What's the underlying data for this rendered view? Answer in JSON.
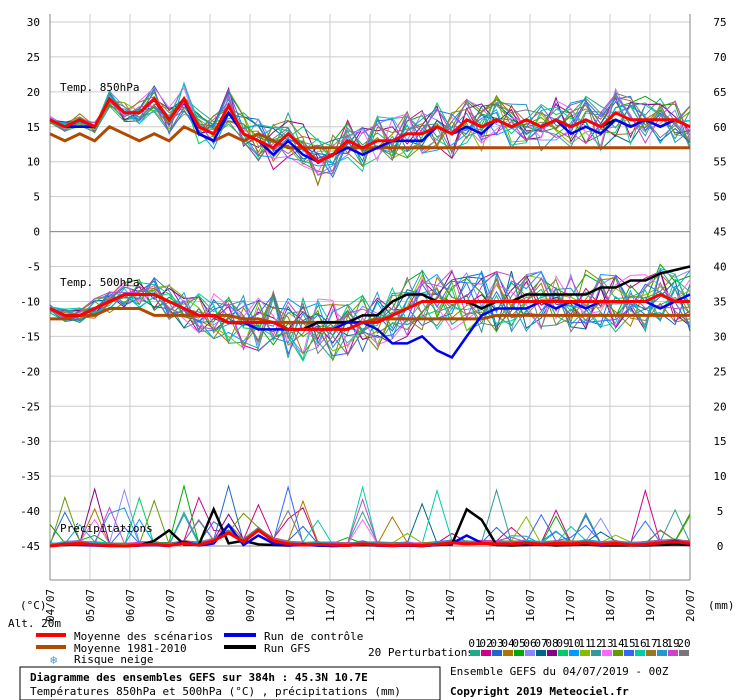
{
  "chart_data": {
    "type": "line",
    "title": "Diagramme des ensembles GEFS sur 384h : 45.3N 10.7E",
    "subtitle": "Températures 850hPa et 500hPa (°C) , précipitations (mm)",
    "run_info": "Ensemble GEFS du 04/07/2019 - 00Z",
    "copyright": "Copyright 2019 Meteociel.fr",
    "left_unit": "(°C)",
    "right_unit": "(mm)",
    "alt_label": "Alt. 20m",
    "left_axis": {
      "ticks": [
        30,
        25,
        20,
        15,
        10,
        5,
        0,
        -5,
        -10,
        -15,
        -20,
        -25,
        -30,
        -35,
        -40,
        -45
      ],
      "range": [
        -45,
        30
      ]
    },
    "right_axis": {
      "ticks": [
        75,
        70,
        65,
        60,
        55,
        50,
        45,
        40,
        35,
        30,
        25,
        20,
        15,
        10,
        5,
        0
      ]
    },
    "x_dates": [
      "04/07",
      "05/07",
      "06/07",
      "07/07",
      "08/07",
      "09/07",
      "10/07",
      "11/07",
      "12/07",
      "13/07",
      "14/07",
      "15/07",
      "16/07",
      "17/07",
      "18/07",
      "19/07",
      "20/07"
    ],
    "panels": [
      {
        "label": "Temp. 850hPa",
        "right_range": [
          45,
          75
        ]
      },
      {
        "label": "Temp. 500hPa",
        "right_range": [
          20,
          45
        ]
      },
      {
        "label": "Précipitations",
        "right_range": [
          0,
          20
        ]
      }
    ],
    "series": [
      {
        "name": "Moyenne des scénarios",
        "color": "#ff0000",
        "t850": [
          16,
          15,
          16,
          15,
          19,
          17,
          17,
          19,
          16,
          19,
          15,
          14,
          18,
          14,
          13,
          12,
          14,
          12,
          10,
          11,
          13,
          12,
          13,
          13,
          14,
          14,
          15,
          14,
          16,
          15,
          16,
          15,
          16,
          15,
          16,
          15,
          16,
          15,
          17,
          16,
          16,
          16,
          16,
          15
        ],
        "t500": [
          -11,
          -12,
          -12,
          -11,
          -10,
          -9,
          -9,
          -9,
          -10,
          -11,
          -12,
          -12,
          -13,
          -13,
          -13,
          -13,
          -14,
          -14,
          -14,
          -14,
          -14,
          -13,
          -13,
          -12,
          -11,
          -10,
          -10,
          -10,
          -10,
          -10,
          -10,
          -10,
          -10,
          -10,
          -10,
          -10,
          -10,
          -10,
          -10,
          -10,
          -10,
          -9,
          -10,
          -10
        ],
        "precip": [
          0,
          0.3,
          0.5,
          0.2,
          0.1,
          0,
          0.2,
          0.3,
          0.1,
          0.5,
          0.2,
          1,
          2.5,
          0.8,
          3,
          1,
          0.4,
          0.2,
          0.3,
          0.2,
          0.1,
          0.4,
          0.2,
          0.1,
          0.2,
          0.1,
          0.3,
          0.6,
          0.4,
          0.5,
          0.4,
          0.4,
          0.6,
          0.3,
          0.5,
          0.4,
          0.6,
          0.3,
          0.5,
          0.2,
          0.3,
          0.6,
          0.8,
          0.5
        ]
      },
      {
        "name": "Moyenne 1981-2010",
        "color": "#b04a00",
        "t850": [
          14,
          13,
          14,
          13,
          15,
          14,
          13,
          14,
          13,
          15,
          14,
          13,
          14,
          13,
          14,
          13,
          12,
          12,
          12,
          12,
          12,
          12,
          12,
          12,
          12,
          12,
          12,
          12,
          12,
          12,
          12,
          12,
          12,
          12,
          12,
          12,
          12,
          12,
          12,
          12,
          12,
          12,
          12,
          12
        ],
        "t500": [
          -12.5,
          -12.5,
          -12,
          -12,
          -11,
          -11,
          -11,
          -12,
          -12,
          -12,
          -12,
          -12,
          -12,
          -12.5,
          -12.5,
          -13,
          -13,
          -13,
          -13,
          -13,
          -13,
          -13,
          -12.5,
          -12.5,
          -12.5,
          -12.5,
          -12.5,
          -12.5,
          -12.5,
          -12.5,
          -12,
          -12,
          -12,
          -12,
          -12,
          -12,
          -12,
          -12,
          -12,
          -12,
          -12,
          -12,
          -12,
          -12
        ],
        "precip": []
      },
      {
        "name": "Run de contrôle",
        "color": "#0000ee",
        "t850": [
          16,
          15,
          15,
          15,
          19,
          17,
          17,
          19,
          16,
          19,
          14,
          13,
          17,
          14,
          13,
          11,
          13,
          11,
          10,
          11,
          12,
          11,
          12,
          13,
          13,
          13,
          15,
          14,
          15,
          14,
          16,
          15,
          16,
          15,
          16,
          14,
          15,
          14,
          16,
          15,
          16,
          15,
          16,
          15
        ],
        "t500": [
          -11,
          -12,
          -12,
          -11,
          -10,
          -9,
          -9,
          -9,
          -10,
          -11,
          -12,
          -12,
          -13,
          -13,
          -14,
          -14,
          -14,
          -14,
          -14,
          -14,
          -13,
          -13,
          -14,
          -16,
          -16,
          -15,
          -17,
          -18,
          -15,
          -12,
          -11,
          -11,
          -11,
          -10,
          -11,
          -10,
          -11,
          -10,
          -10,
          -10,
          -10,
          -11,
          -10,
          -9
        ],
        "precip": [
          0,
          0.4,
          0.2,
          0.1,
          0,
          0,
          0.1,
          0.2,
          0,
          0.8,
          0.1,
          0.5,
          4,
          0.2,
          2,
          0.5,
          0.1,
          0.2,
          0.1,
          0,
          0.1,
          0.3,
          0.1,
          0,
          0.1,
          0,
          0.2,
          0.5,
          2,
          0.6,
          0.2,
          0.3,
          0.5,
          0.2,
          0.4,
          0.3,
          0.6,
          0.1,
          0.4,
          0.2,
          0.2,
          0.5,
          1,
          0.3
        ]
      },
      {
        "name": "Run GFS",
        "color": "#000000",
        "t850": [
          16,
          15,
          16,
          15,
          19,
          17,
          17,
          19,
          16,
          19,
          15,
          14,
          17,
          14,
          13,
          12,
          14,
          12,
          10,
          11,
          13,
          12,
          13,
          13,
          14,
          14,
          15,
          14,
          16,
          15,
          16,
          15,
          16,
          15,
          16,
          15,
          16,
          15,
          16,
          15,
          16,
          15,
          16,
          15
        ],
        "t500": [
          -11,
          -12,
          -12,
          -11,
          -10,
          -9,
          -9,
          -9,
          -10,
          -11,
          -12,
          -12,
          -13,
          -13,
          -13,
          -13,
          -14,
          -14,
          -13,
          -13,
          -13,
          -12,
          -12,
          -10,
          -9,
          -9,
          -10,
          -10,
          -10,
          -11,
          -10,
          -10,
          -9,
          -9,
          -9,
          -9,
          -9,
          -8,
          -8,
          -7,
          -7,
          -6,
          -5.5,
          -5
        ],
        "precip": [
          0,
          0.2,
          0.3,
          0.2,
          0.1,
          0,
          0.1,
          1,
          3,
          0.3,
          0.2,
          7,
          0.5,
          1,
          0.3,
          0.2,
          0.1,
          0.3,
          0.1,
          0,
          0.1,
          0.2,
          0.1,
          0.1,
          0.1,
          0,
          0.2,
          0.3,
          7,
          5,
          0.2,
          0.1,
          0.2,
          0.3,
          0.1,
          0.2,
          0.3,
          0.1,
          0.1,
          0.1,
          0.1,
          0.2,
          0.3,
          0.2
        ]
      }
    ],
    "perturbations": {
      "label": "20 Perturbations",
      "numbers": [
        "01",
        "02",
        "03",
        "04",
        "05",
        "06",
        "07",
        "08",
        "09",
        "10",
        "11",
        "12",
        "13",
        "14",
        "15",
        "16",
        "17",
        "18",
        "19",
        "20"
      ],
      "colors": [
        "#22aa88",
        "#cc0088",
        "#2266cc",
        "#aa7700",
        "#00aa00",
        "#8888ff",
        "#006688",
        "#880088",
        "#00cc66",
        "#0099ff",
        "#88bb00",
        "#339999",
        "#ff66ff",
        "#669900",
        "#3366ff",
        "#00ccaa",
        "#997722",
        "#2299cc",
        "#cc44cc",
        "#777777"
      ]
    },
    "snow_legend": "Risque neige"
  }
}
